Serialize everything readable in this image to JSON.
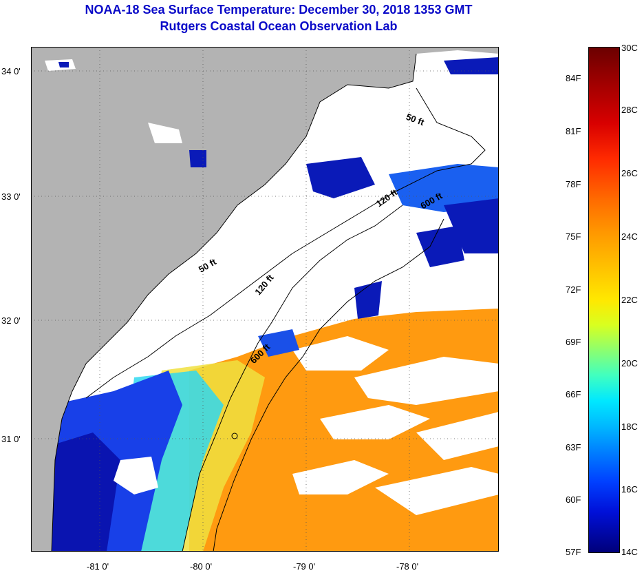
{
  "header": {
    "title": "NOAA-18 Sea Surface Temperature:  December 30, 2018 1353 GMT",
    "subtitle": "Rutgers Coastal Ocean Observation Lab"
  },
  "map": {
    "lon_labels": [
      "-81 0'",
      "-80 0'",
      "-79 0'",
      "-78 0'"
    ],
    "lat_labels": [
      "34 0'",
      "33 0'",
      "32 0'",
      "31 0'"
    ],
    "isobath_labels": [
      "50 ft",
      "50 ft",
      "120 ft",
      "120 ft",
      "600 ft",
      "600 ft"
    ],
    "colors": {
      "land": "#b3b3b3",
      "cloud": "#ffffff",
      "cold": "#0a1ab8",
      "warm": "#ff9a10"
    }
  },
  "colorbar": {
    "fahrenheit": [
      "84F",
      "81F",
      "78F",
      "75F",
      "72F",
      "69F",
      "66F",
      "63F",
      "60F",
      "57F"
    ],
    "celsius": [
      "30C",
      "28C",
      "26C",
      "24C",
      "22C",
      "20C",
      "18C",
      "16C",
      "14C"
    ],
    "range_celsius": [
      14,
      30
    ]
  }
}
